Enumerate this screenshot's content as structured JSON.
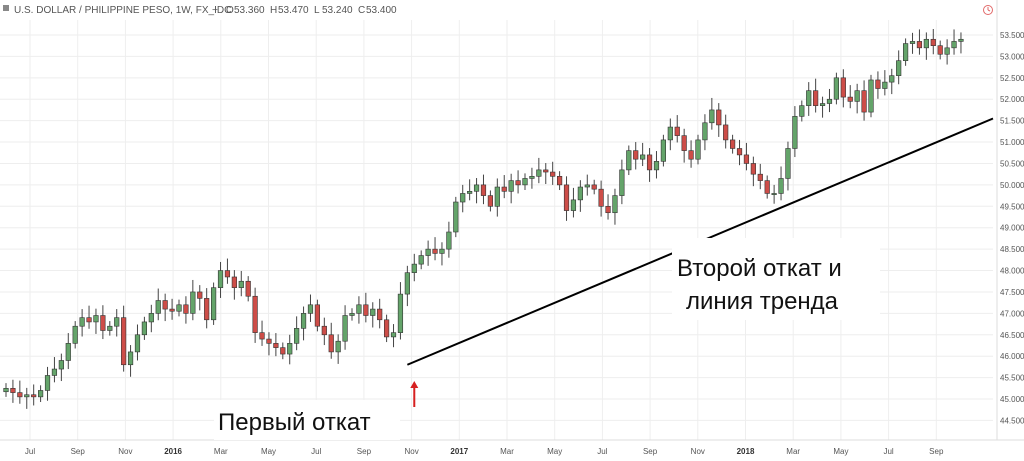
{
  "header": {
    "title": "U.S. DOLLAR / PHILIPPINE PESO, 1W, FX_IDC",
    "ohlc": [
      {
        "glyph": "O",
        "value": "53.360"
      },
      {
        "glyph": "H",
        "value": "53.470"
      },
      {
        "glyph": "L",
        "value": "53.240"
      },
      {
        "glyph": "C",
        "value": "53.400"
      }
    ],
    "dash": "−",
    "info_icon": "clock-icon"
  },
  "colors": {
    "up": "#64a46a",
    "down": "#cd4d48",
    "grid": "#eeeeee",
    "trendline": "#000000",
    "arrow": "#d62020"
  },
  "chart_data": {
    "type": "candlestick",
    "title": "U.S. DOLLAR / PHILIPPINE PESO, 1W, FX_IDC",
    "interval": "1W",
    "ylim": [
      44.3,
      53.85
    ],
    "y_ticks": [
      "53.500",
      "53.000",
      "52.500",
      "52.000",
      "51.500",
      "51.000",
      "50.500",
      "50.000",
      "49.500",
      "49.000",
      "48.500",
      "48.000",
      "47.500",
      "47.000",
      "46.500",
      "46.000",
      "45.500",
      "45.000",
      "44.500"
    ],
    "x_ticks": [
      {
        "label": "Jul",
        "bold": false
      },
      {
        "label": "Sep",
        "bold": false
      },
      {
        "label": "Nov",
        "bold": false
      },
      {
        "label": "2016",
        "bold": true
      },
      {
        "label": "Mar",
        "bold": false
      },
      {
        "label": "May",
        "bold": false
      },
      {
        "label": "Jul",
        "bold": false
      },
      {
        "label": "Sep",
        "bold": false
      },
      {
        "label": "Nov",
        "bold": false
      },
      {
        "label": "2017",
        "bold": true
      },
      {
        "label": "Mar",
        "bold": false
      },
      {
        "label": "May",
        "bold": false
      },
      {
        "label": "Jul",
        "bold": false
      },
      {
        "label": "Sep",
        "bold": false
      },
      {
        "label": "Nov",
        "bold": false
      },
      {
        "label": "2018",
        "bold": true
      },
      {
        "label": "Mar",
        "bold": false
      },
      {
        "label": "May",
        "bold": false
      },
      {
        "label": "Jul",
        "bold": false
      },
      {
        "label": "Sep",
        "bold": false
      }
    ],
    "closes": [
      45.25,
      45.15,
      45.05,
      45.1,
      45.05,
      45.2,
      45.55,
      45.7,
      45.9,
      46.3,
      46.7,
      46.9,
      46.8,
      46.95,
      46.6,
      46.7,
      46.9,
      45.8,
      46.1,
      46.5,
      46.8,
      47.0,
      47.3,
      47.1,
      47.05,
      47.2,
      47.0,
      47.5,
      47.35,
      46.85,
      47.6,
      48.0,
      47.85,
      47.6,
      47.75,
      47.4,
      46.55,
      46.4,
      46.3,
      46.2,
      46.05,
      46.3,
      46.65,
      47.0,
      47.2,
      46.7,
      46.5,
      46.1,
      46.35,
      46.95,
      47.0,
      47.2,
      46.95,
      47.1,
      46.85,
      46.45,
      46.55,
      47.45,
      47.95,
      48.15,
      48.35,
      48.5,
      48.4,
      48.5,
      48.9,
      49.6,
      49.8,
      49.85,
      50.0,
      49.75,
      49.5,
      49.95,
      49.85,
      50.1,
      50.0,
      50.15,
      50.2,
      50.35,
      50.3,
      50.2,
      50.0,
      49.4,
      49.65,
      49.95,
      50.0,
      49.9,
      49.5,
      49.35,
      49.75,
      50.35,
      50.8,
      50.6,
      50.7,
      50.35,
      50.55,
      51.05,
      51.35,
      51.15,
      50.8,
      50.6,
      51.05,
      51.45,
      51.75,
      51.4,
      51.05,
      50.85,
      50.7,
      50.5,
      50.25,
      50.1,
      49.8,
      49.8,
      50.15,
      50.85,
      51.6,
      51.85,
      52.2,
      51.85,
      51.9,
      52.0,
      52.5,
      52.05,
      51.95,
      52.2,
      51.7,
      52.45,
      52.25,
      52.4,
      52.55,
      52.9,
      53.3,
      53.35,
      53.2,
      53.4,
      53.25,
      53.05,
      53.2,
      53.35,
      53.4
    ],
    "trendline": {
      "start": 45.8,
      "end": 51.55,
      "start_index": 58,
      "end_extends": "right-edge"
    },
    "annotations": [
      {
        "text": "Первый откат",
        "index": 59
      },
      {
        "lines": [
          "Второй откат и",
          "линия тренда"
        ],
        "index": 152
      }
    ]
  }
}
